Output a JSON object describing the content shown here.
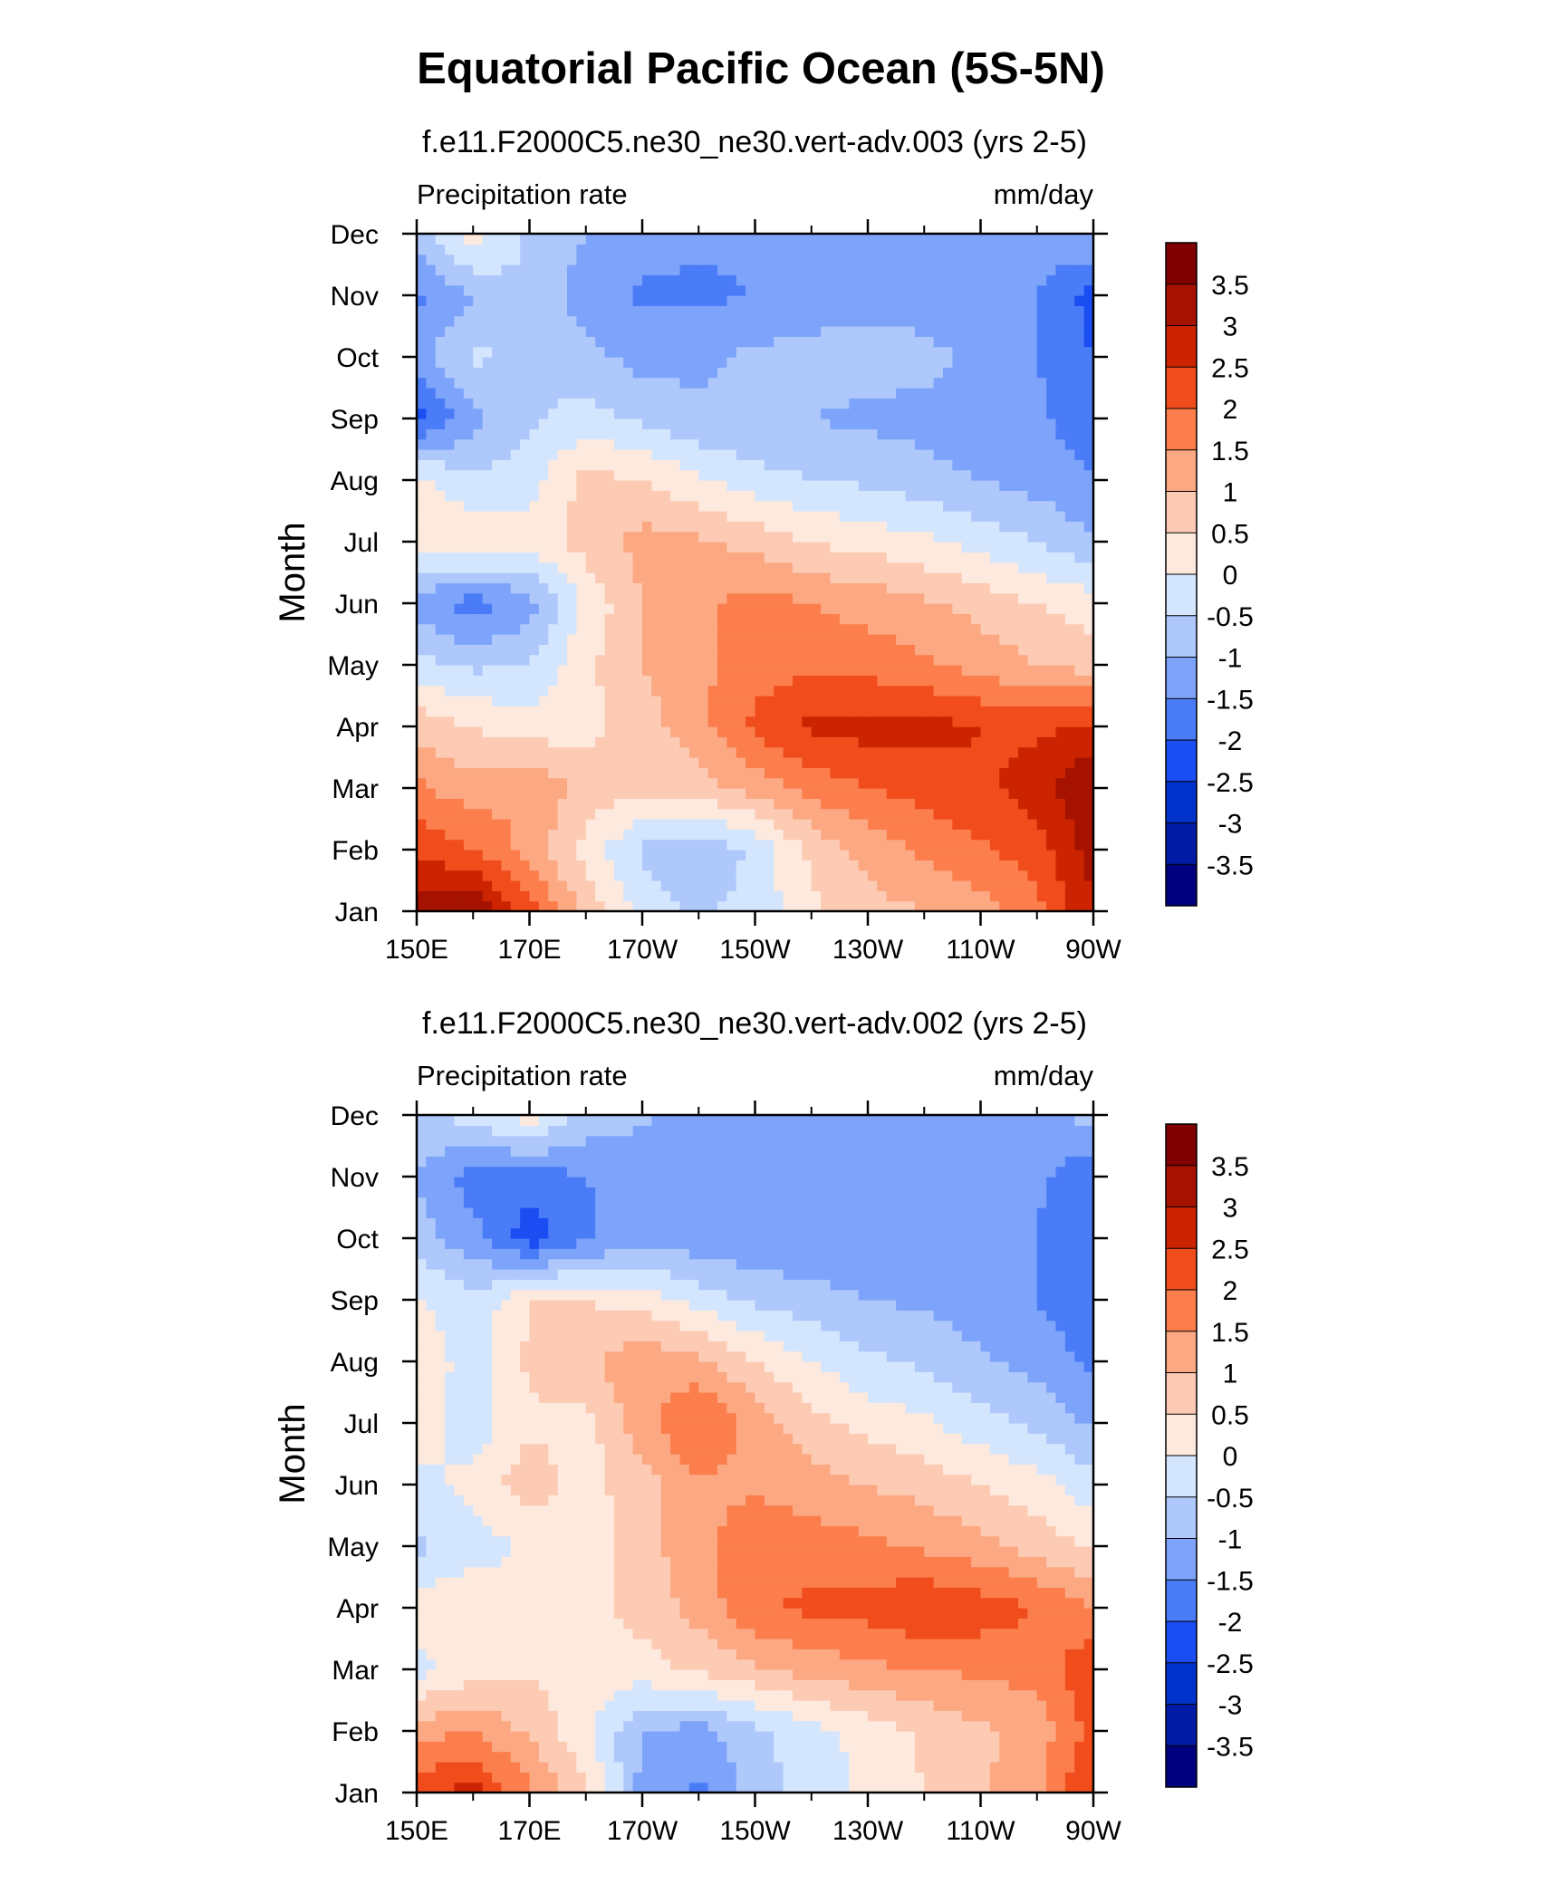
{
  "title": "Equatorial Pacific Ocean (5S-5N)",
  "colors": {
    "levels": [
      -3.5,
      -3,
      -2.5,
      -2,
      -1.5,
      -1,
      -0.5,
      0,
      0.5,
      1,
      1.5,
      2,
      2.5,
      3,
      3.5
    ],
    "palette": [
      "#00007f",
      "#001ba6",
      "#0033cc",
      "#1a4df2",
      "#4b7cf7",
      "#7da4fa",
      "#aec8fc",
      "#d4e6fe",
      "#fde9dd",
      "#fdcab3",
      "#fca882",
      "#fb7e4c",
      "#f04c1c",
      "#cc2400",
      "#a51200",
      "#7f0000"
    ]
  },
  "chart_data": [
    {
      "type": "heatmap",
      "subtitle": "f.e11.F2000C5.ne30_ne30.vert-adv.003 (yrs 2-5)",
      "left_label": "Precipitation rate",
      "right_label": "mm/day",
      "ylabel": "Month",
      "xlabel": "",
      "x_ticks": [
        "150E",
        "170E",
        "170W",
        "150W",
        "130W",
        "110W",
        "90W"
      ],
      "y_ticks": [
        "Jan",
        "Feb",
        "Mar",
        "Apr",
        "May",
        "Jun",
        "Jul",
        "Aug",
        "Sep",
        "Oct",
        "Nov",
        "Dec"
      ],
      "x": [
        150,
        160,
        170,
        180,
        190,
        200,
        210,
        220,
        230,
        240,
        250,
        260,
        270
      ],
      "colorbar_labels": [
        "3.5",
        "3",
        "2.5",
        "2",
        "1.5",
        "1",
        "0.5",
        "0",
        "-0.5",
        "-1",
        "-1.5",
        "-2",
        "-2.5",
        "-3",
        "-3.5"
      ],
      "values": [
        [
          3.2,
          3.5,
          2.2,
          0.8,
          -0.2,
          -0.6,
          -0.3,
          0.4,
          0.8,
          1.0,
          1.3,
          1.8,
          3.0
        ],
        [
          2.4,
          2.0,
          1.3,
          0.3,
          -0.6,
          -0.9,
          -0.4,
          0.6,
          1.2,
          1.6,
          1.9,
          2.3,
          3.2
        ],
        [
          1.6,
          1.2,
          1.5,
          0.8,
          0.6,
          0.8,
          1.2,
          1.7,
          2.0,
          2.2,
          2.4,
          2.7,
          3.6
        ],
        [
          0.8,
          0.5,
          0.2,
          0.3,
          0.8,
          1.3,
          2.1,
          2.6,
          2.7,
          2.7,
          2.5,
          2.4,
          2.6
        ],
        [
          -0.3,
          -0.6,
          -0.5,
          0.4,
          1.0,
          1.4,
          1.8,
          1.9,
          1.8,
          1.6,
          1.3,
          1.0,
          0.8
        ],
        [
          -1.3,
          -1.8,
          -1.2,
          0.1,
          1.0,
          1.4,
          1.7,
          1.5,
          1.3,
          1.1,
          0.8,
          0.5,
          0.2
        ],
        [
          0.3,
          0.5,
          0.2,
          0.7,
          1.2,
          1.1,
          0.8,
          0.5,
          0.3,
          0.1,
          -0.2,
          -0.5,
          -0.9
        ],
        [
          0.2,
          -0.4,
          -0.2,
          0.7,
          0.5,
          0.1,
          -0.3,
          -0.5,
          -0.6,
          -0.8,
          -1.0,
          -1.2,
          -1.5
        ],
        [
          -2.2,
          -1.2,
          -0.6,
          -0.3,
          -0.6,
          -0.9,
          -1.0,
          -1.0,
          -1.1,
          -1.2,
          -1.3,
          -1.4,
          -1.8
        ],
        [
          -1.2,
          -0.4,
          -0.6,
          -0.8,
          -1.2,
          -1.1,
          -0.9,
          -0.8,
          -0.8,
          -0.8,
          -1.2,
          -1.5,
          -2.0
        ],
        [
          -1.6,
          -1.0,
          -0.5,
          -1.3,
          -1.6,
          -1.6,
          -1.5,
          -1.3,
          -1.2,
          -1.3,
          -1.4,
          -1.5,
          -2.2
        ],
        [
          -0.7,
          0.3,
          -0.6,
          -1.0,
          -1.3,
          -1.4,
          -1.4,
          -1.4,
          -1.4,
          -1.3,
          -1.2,
          -1.2,
          -1.0
        ]
      ]
    },
    {
      "type": "heatmap",
      "subtitle": "f.e11.F2000C5.ne30_ne30.vert-adv.002 (yrs 2-5)",
      "left_label": "Precipitation rate",
      "right_label": "mm/day",
      "ylabel": "Month",
      "xlabel": "",
      "x_ticks": [
        "150E",
        "170E",
        "170W",
        "150W",
        "130W",
        "110W",
        "90W"
      ],
      "y_ticks": [
        "Jan",
        "Feb",
        "Mar",
        "Apr",
        "May",
        "Jun",
        "Jul",
        "Aug",
        "Sep",
        "Oct",
        "Nov",
        "Dec"
      ],
      "x": [
        150,
        160,
        170,
        180,
        190,
        200,
        210,
        220,
        230,
        240,
        250,
        260,
        270
      ],
      "colorbar_labels": [
        "3.5",
        "3",
        "2.5",
        "2",
        "1.5",
        "1",
        "0.5",
        "0",
        "-0.5",
        "-1",
        "-1.5",
        "-2",
        "-2.5",
        "-3",
        "-3.5"
      ],
      "values": [
        [
          2.3,
          2.7,
          1.6,
          0.6,
          -1.2,
          -1.6,
          -0.8,
          -0.3,
          0.1,
          0.5,
          0.9,
          1.4,
          2.6
        ],
        [
          1.3,
          1.5,
          0.9,
          0.1,
          -1.0,
          -1.2,
          -0.6,
          -0.2,
          0.2,
          0.6,
          0.9,
          1.2,
          2.2
        ],
        [
          -0.2,
          0.3,
          0.4,
          0.3,
          0.3,
          0.6,
          0.9,
          1.2,
          1.4,
          1.5,
          1.6,
          1.7,
          2.4
        ],
        [
          0.3,
          0.5,
          0.2,
          0.3,
          0.7,
          1.2,
          1.9,
          2.1,
          2.2,
          2.5,
          2.3,
          2.0,
          1.5
        ],
        [
          -0.6,
          -0.3,
          0.1,
          0.2,
          0.8,
          1.3,
          1.9,
          1.8,
          1.6,
          1.4,
          1.2,
          0.8,
          0.4
        ],
        [
          -0.2,
          0.2,
          0.8,
          0.3,
          0.8,
          1.4,
          1.4,
          1.2,
          1.0,
          0.8,
          0.5,
          0.2,
          -0.3
        ],
        [
          0.3,
          -0.3,
          0.4,
          0.3,
          1.3,
          2.1,
          1.3,
          0.7,
          0.3,
          0.1,
          -0.3,
          -0.6,
          -1.1
        ],
        [
          0.3,
          -0.2,
          0.6,
          0.9,
          1.4,
          1.1,
          0.5,
          0.0,
          -0.4,
          -0.6,
          -0.9,
          -1.2,
          -1.6
        ],
        [
          0.1,
          -0.4,
          0.5,
          0.5,
          0.3,
          -0.2,
          -0.6,
          -0.8,
          -1.0,
          -1.1,
          -1.3,
          -1.5,
          -1.9
        ],
        [
          -0.8,
          -1.3,
          -2.3,
          -1.6,
          -1.2,
          -1.3,
          -1.4,
          -1.4,
          -1.4,
          -1.2,
          -1.3,
          -1.5,
          -2.0
        ],
        [
          -1.0,
          -1.8,
          -1.8,
          -1.5,
          -1.4,
          -1.3,
          -1.3,
          -1.4,
          -1.3,
          -1.3,
          -1.3,
          -1.4,
          -1.9
        ],
        [
          -0.6,
          -0.3,
          0.3,
          -0.7,
          -0.9,
          -1.2,
          -1.3,
          -1.2,
          -1.2,
          -1.2,
          -1.2,
          -1.0,
          -0.9
        ]
      ]
    }
  ]
}
